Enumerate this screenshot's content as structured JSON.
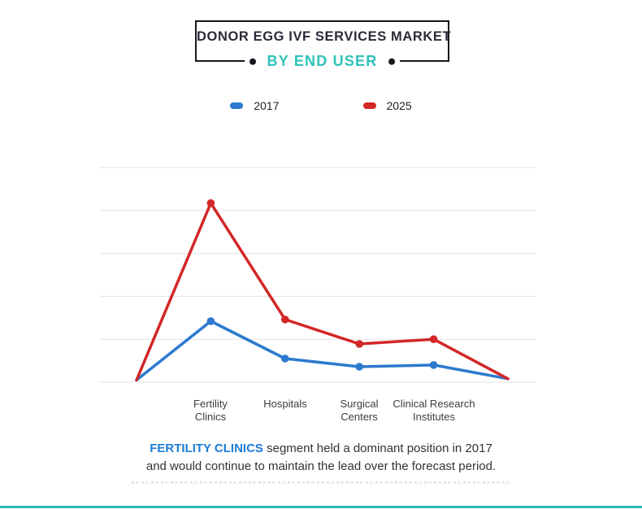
{
  "header": {
    "title": "DONOR EGG IVF SERVICES MARKET",
    "subtitle": "BY END USER"
  },
  "legend": [
    {
      "label": "2017",
      "color": "#2d79cf"
    },
    {
      "label": "2025",
      "color": "#d32727"
    }
  ],
  "chart_data": {
    "type": "line",
    "categories": [
      "",
      "Fertility Clinics",
      "Hospitals",
      "Surgical Centers",
      "Clinical Research Institutes",
      ""
    ],
    "series": [
      {
        "name": "2017",
        "color": "#2d79cf",
        "values": [
          0.05,
          1.42,
          0.55,
          0.36,
          0.4,
          0.08
        ]
      },
      {
        "name": "2025",
        "color": "#d32727",
        "values": [
          0.05,
          4.17,
          1.46,
          0.89,
          1.0,
          0.08
        ]
      }
    ],
    "ylim": [
      0,
      5
    ],
    "grid": true,
    "gridline_count": 6,
    "y_tick_labels_visible": false,
    "legend_position": "top",
    "x_axis_labels": [
      "Fertility\nClinics",
      "Hospitals",
      "Surgical\nCenters",
      "Clinical Research\nInstitutes"
    ],
    "title": "DONOR EGG IVF SERVICES MARKET BY END USER"
  },
  "caption": {
    "highlight": "FERTILITY CLINICS",
    "line1_rest": " segment held a dominant position in 2017",
    "line2": "and would continue to maintain the lead over the forecast period."
  },
  "colors": {
    "accent_teal": "#2fc2b9",
    "bottom_rule_teal": "#2cb9ac",
    "box_border": "#17171f",
    "gridline": "#e3e3e3",
    "caption_highlight_blue": "#1d7cd6",
    "title_text": "#2b2b38"
  }
}
